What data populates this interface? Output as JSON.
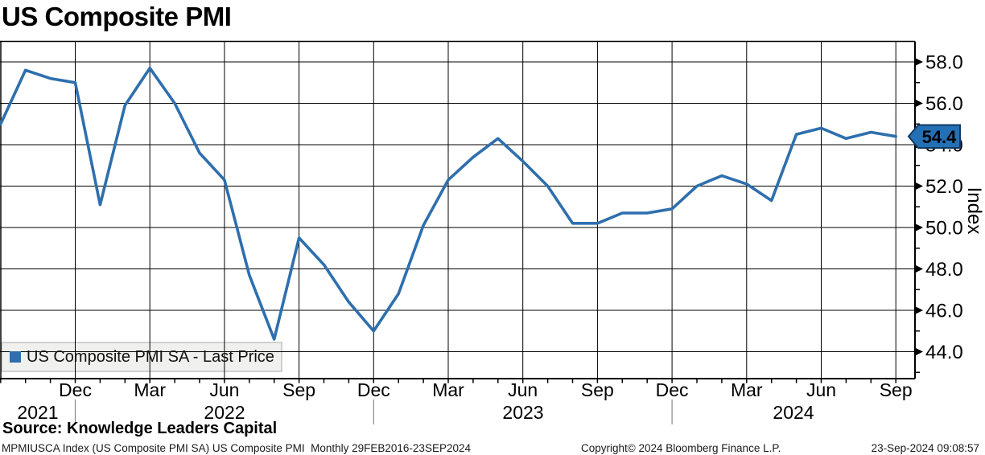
{
  "title": "US Composite PMI",
  "y_axis_title": "Index",
  "last_price": {
    "label": "54.4",
    "value": 54.4
  },
  "legend": {
    "label": "US Composite PMI SA - Last Price",
    "swatch_color": "#2e6fad"
  },
  "source_line": "Source: Knowledge Leaders Capital",
  "footer": {
    "left": "MPMIUSCA Index (US Composite PMI SA) US Composite PMI  Monthly 29FEB2016-23SEP2024",
    "center": "Copyright© 2024 Bloomberg Finance L.P.",
    "right": "23-Sep-2024 09:08:57"
  },
  "colors": {
    "line": "#2e6fad",
    "tag_fill": "#2470b5",
    "tag_border": "#133a61",
    "tag_text": "#ffffff",
    "legend_bg": "#f0f0ee",
    "grid": "#000000"
  },
  "chart_data": {
    "type": "line",
    "title": "US Composite PMI",
    "xlabel": "",
    "ylabel": "Index",
    "grid": true,
    "legend_position": "bottom-left",
    "ylim": [
      42.7,
      59.0
    ],
    "y_ticks": [
      "58.0",
      "56.0",
      "54.0",
      "52.0",
      "50.0",
      "48.0",
      "46.0",
      "44.0"
    ],
    "x_tick_labels": [
      "Dec",
      "Mar",
      "Jun",
      "Sep",
      "Dec",
      "Mar",
      "Jun",
      "Sep",
      "Dec",
      "Mar",
      "Jun",
      "Sep"
    ],
    "year_labels": [
      "2021",
      "2022",
      "2023",
      "2024"
    ],
    "x": [
      "Sep 2021",
      "Oct 2021",
      "Nov 2021",
      "Dec 2021",
      "Jan 2022",
      "Feb 2022",
      "Mar 2022",
      "Apr 2022",
      "May 2022",
      "Jun 2022",
      "Jul 2022",
      "Aug 2022",
      "Sep 2022",
      "Oct 2022",
      "Nov 2022",
      "Dec 2022",
      "Jan 2023",
      "Feb 2023",
      "Mar 2023",
      "Apr 2023",
      "May 2023",
      "Jun 2023",
      "Jul 2023",
      "Aug 2023",
      "Sep 2023",
      "Oct 2023",
      "Nov 2023",
      "Dec 2023",
      "Jan 2024",
      "Feb 2024",
      "Mar 2024",
      "Apr 2024",
      "May 2024",
      "Jun 2024",
      "Jul 2024",
      "Aug 2024",
      "Sep 2024"
    ],
    "series": [
      {
        "name": "US Composite PMI SA - Last Price",
        "values": [
          55.0,
          57.6,
          57.2,
          57.0,
          51.1,
          55.9,
          57.7,
          56.0,
          53.6,
          52.3,
          47.7,
          44.6,
          49.5,
          48.2,
          46.4,
          45.0,
          46.8,
          50.1,
          52.3,
          53.4,
          54.3,
          53.2,
          52.0,
          50.2,
          50.2,
          50.7,
          50.7,
          50.9,
          52.0,
          52.5,
          52.1,
          51.3,
          54.5,
          54.8,
          54.3,
          54.6,
          54.4
        ]
      }
    ],
    "last_price": 54.4
  }
}
